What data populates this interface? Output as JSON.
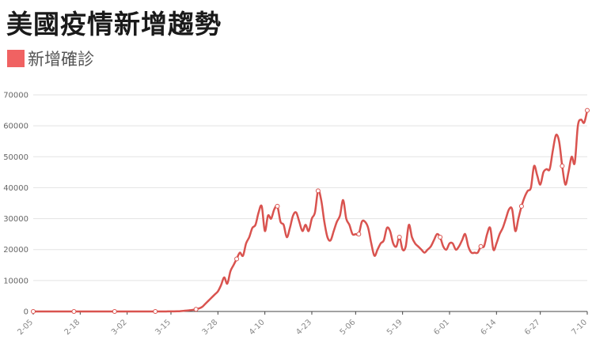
{
  "title": "美國疫情新增趨勢",
  "legend": {
    "label": "新增確診",
    "color": "#f06262"
  },
  "chart_data": {
    "type": "line",
    "title": "美國疫情新增趨勢",
    "xlabel": "",
    "ylabel": "",
    "ylim": [
      0,
      70000
    ],
    "yticks": [
      "0",
      "10000",
      "20000",
      "30000",
      "40000",
      "50000",
      "60000",
      "70000"
    ],
    "xticks": [
      "2-05",
      "2-18",
      "3-02",
      "3-15",
      "3-28",
      "4-10",
      "4-23",
      "5-06",
      "5-19",
      "6-01",
      "6-14",
      "6-27",
      "7-10"
    ],
    "grid": true,
    "legend_position": "top-left",
    "series": [
      {
        "name": "新增確診",
        "color": "#d9534f",
        "values": [
          0,
          0,
          0,
          0,
          0,
          0,
          0,
          0,
          0,
          0,
          0,
          0,
          0,
          0,
          0,
          0,
          0,
          0,
          0,
          0,
          0,
          0,
          0,
          0,
          0,
          0,
          0,
          0,
          0,
          0,
          0,
          0,
          0,
          0,
          0,
          0,
          0,
          0,
          0,
          0,
          0,
          0,
          10,
          20,
          30,
          40,
          60,
          100,
          200,
          300,
          400,
          500,
          700,
          1000,
          1500,
          2500,
          3500,
          4500,
          5500,
          6500,
          8500,
          11000,
          9000,
          13000,
          15000,
          17000,
          19000,
          18000,
          22000,
          24000,
          27000,
          28000,
          32000,
          34000,
          26000,
          31000,
          30000,
          33000,
          34000,
          29000,
          28000,
          24000,
          27000,
          31000,
          32000,
          29000,
          26000,
          28000,
          26000,
          30000,
          32000,
          39000,
          36000,
          29000,
          24000,
          23000,
          26000,
          29000,
          31000,
          36000,
          30000,
          28000,
          25000,
          25000,
          25000,
          29000,
          29000,
          27000,
          22000,
          18000,
          20000,
          22000,
          23000,
          27000,
          26000,
          22000,
          21000,
          24000,
          20000,
          21000,
          28000,
          24000,
          22000,
          21000,
          20000,
          19000,
          20000,
          21000,
          23000,
          25000,
          24000,
          21000,
          20000,
          22000,
          22000,
          20000,
          21000,
          23000,
          25000,
          21000,
          19000,
          19000,
          19000,
          21000,
          21000,
          25000,
          27000,
          20000,
          22000,
          25000,
          27000,
          30000,
          33000,
          33000,
          26000,
          30000,
          34000,
          37000,
          39000,
          40000,
          47000,
          44000,
          41000,
          45000,
          46000,
          46000,
          52000,
          57000,
          55000,
          47000,
          41000,
          45000,
          50000,
          48000,
          60000,
          62000,
          61000,
          65000
        ]
      }
    ]
  }
}
